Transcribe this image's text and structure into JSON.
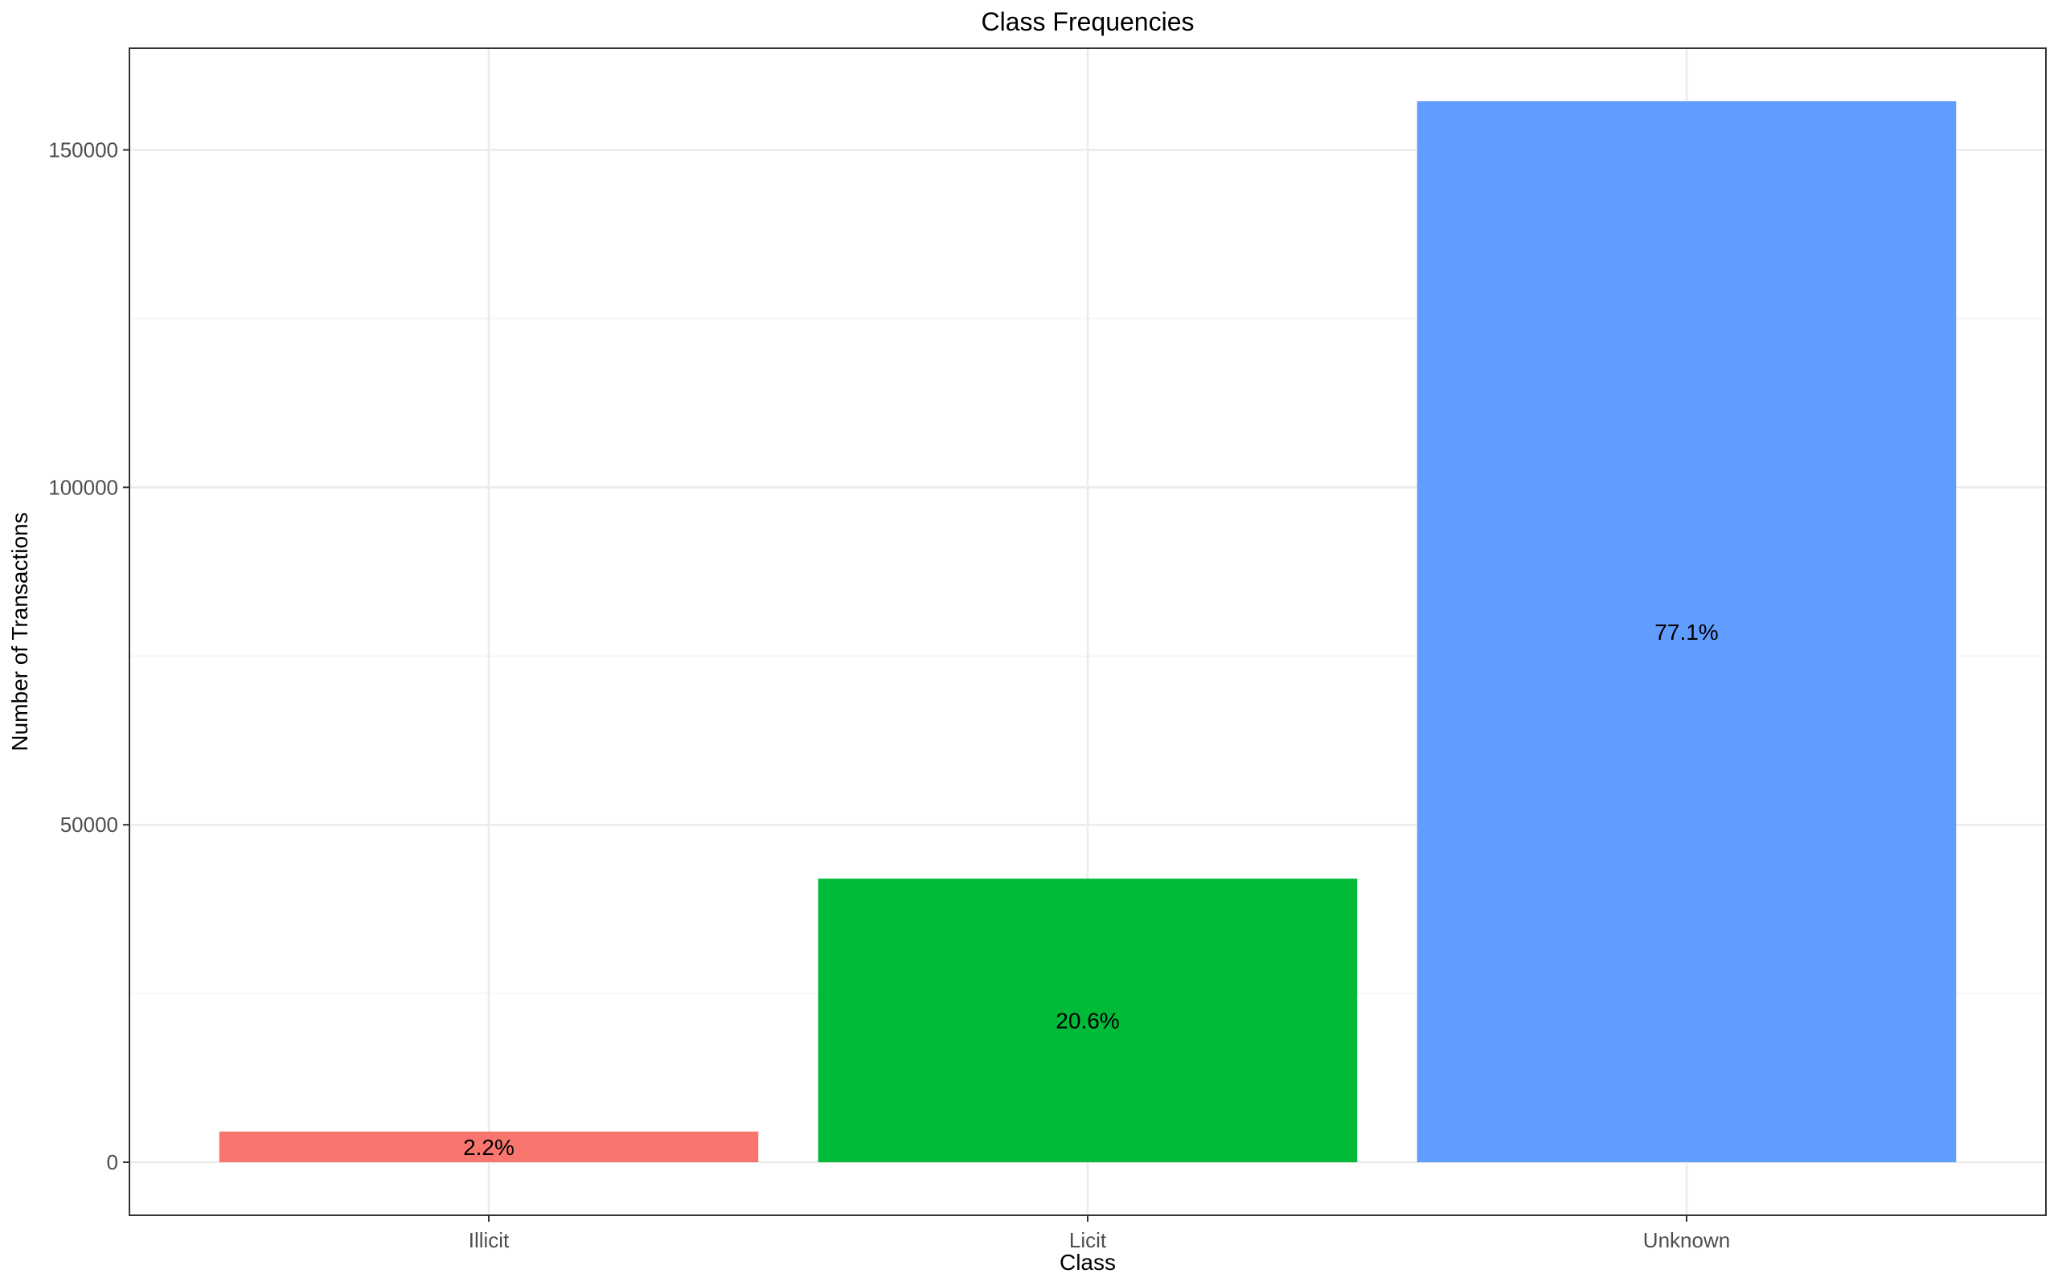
{
  "chart_data": {
    "type": "bar",
    "title": "Class Frequencies",
    "xlabel": "Class",
    "ylabel": "Number of Transactions",
    "categories": [
      "Illicit",
      "Licit",
      "Unknown"
    ],
    "values": [
      4545,
      42019,
      157205
    ],
    "data_labels": [
      "2.2%",
      "20.6%",
      "77.1%"
    ],
    "colors": [
      "#F8766D",
      "#00BA38",
      "#619CFF"
    ],
    "ylim": [
      -7860,
      165065
    ],
    "yticks": [
      0,
      50000,
      100000,
      150000
    ],
    "ytick_labels": [
      "0",
      "50000",
      "100000",
      "150000"
    ],
    "grid": true,
    "legend": "none"
  }
}
